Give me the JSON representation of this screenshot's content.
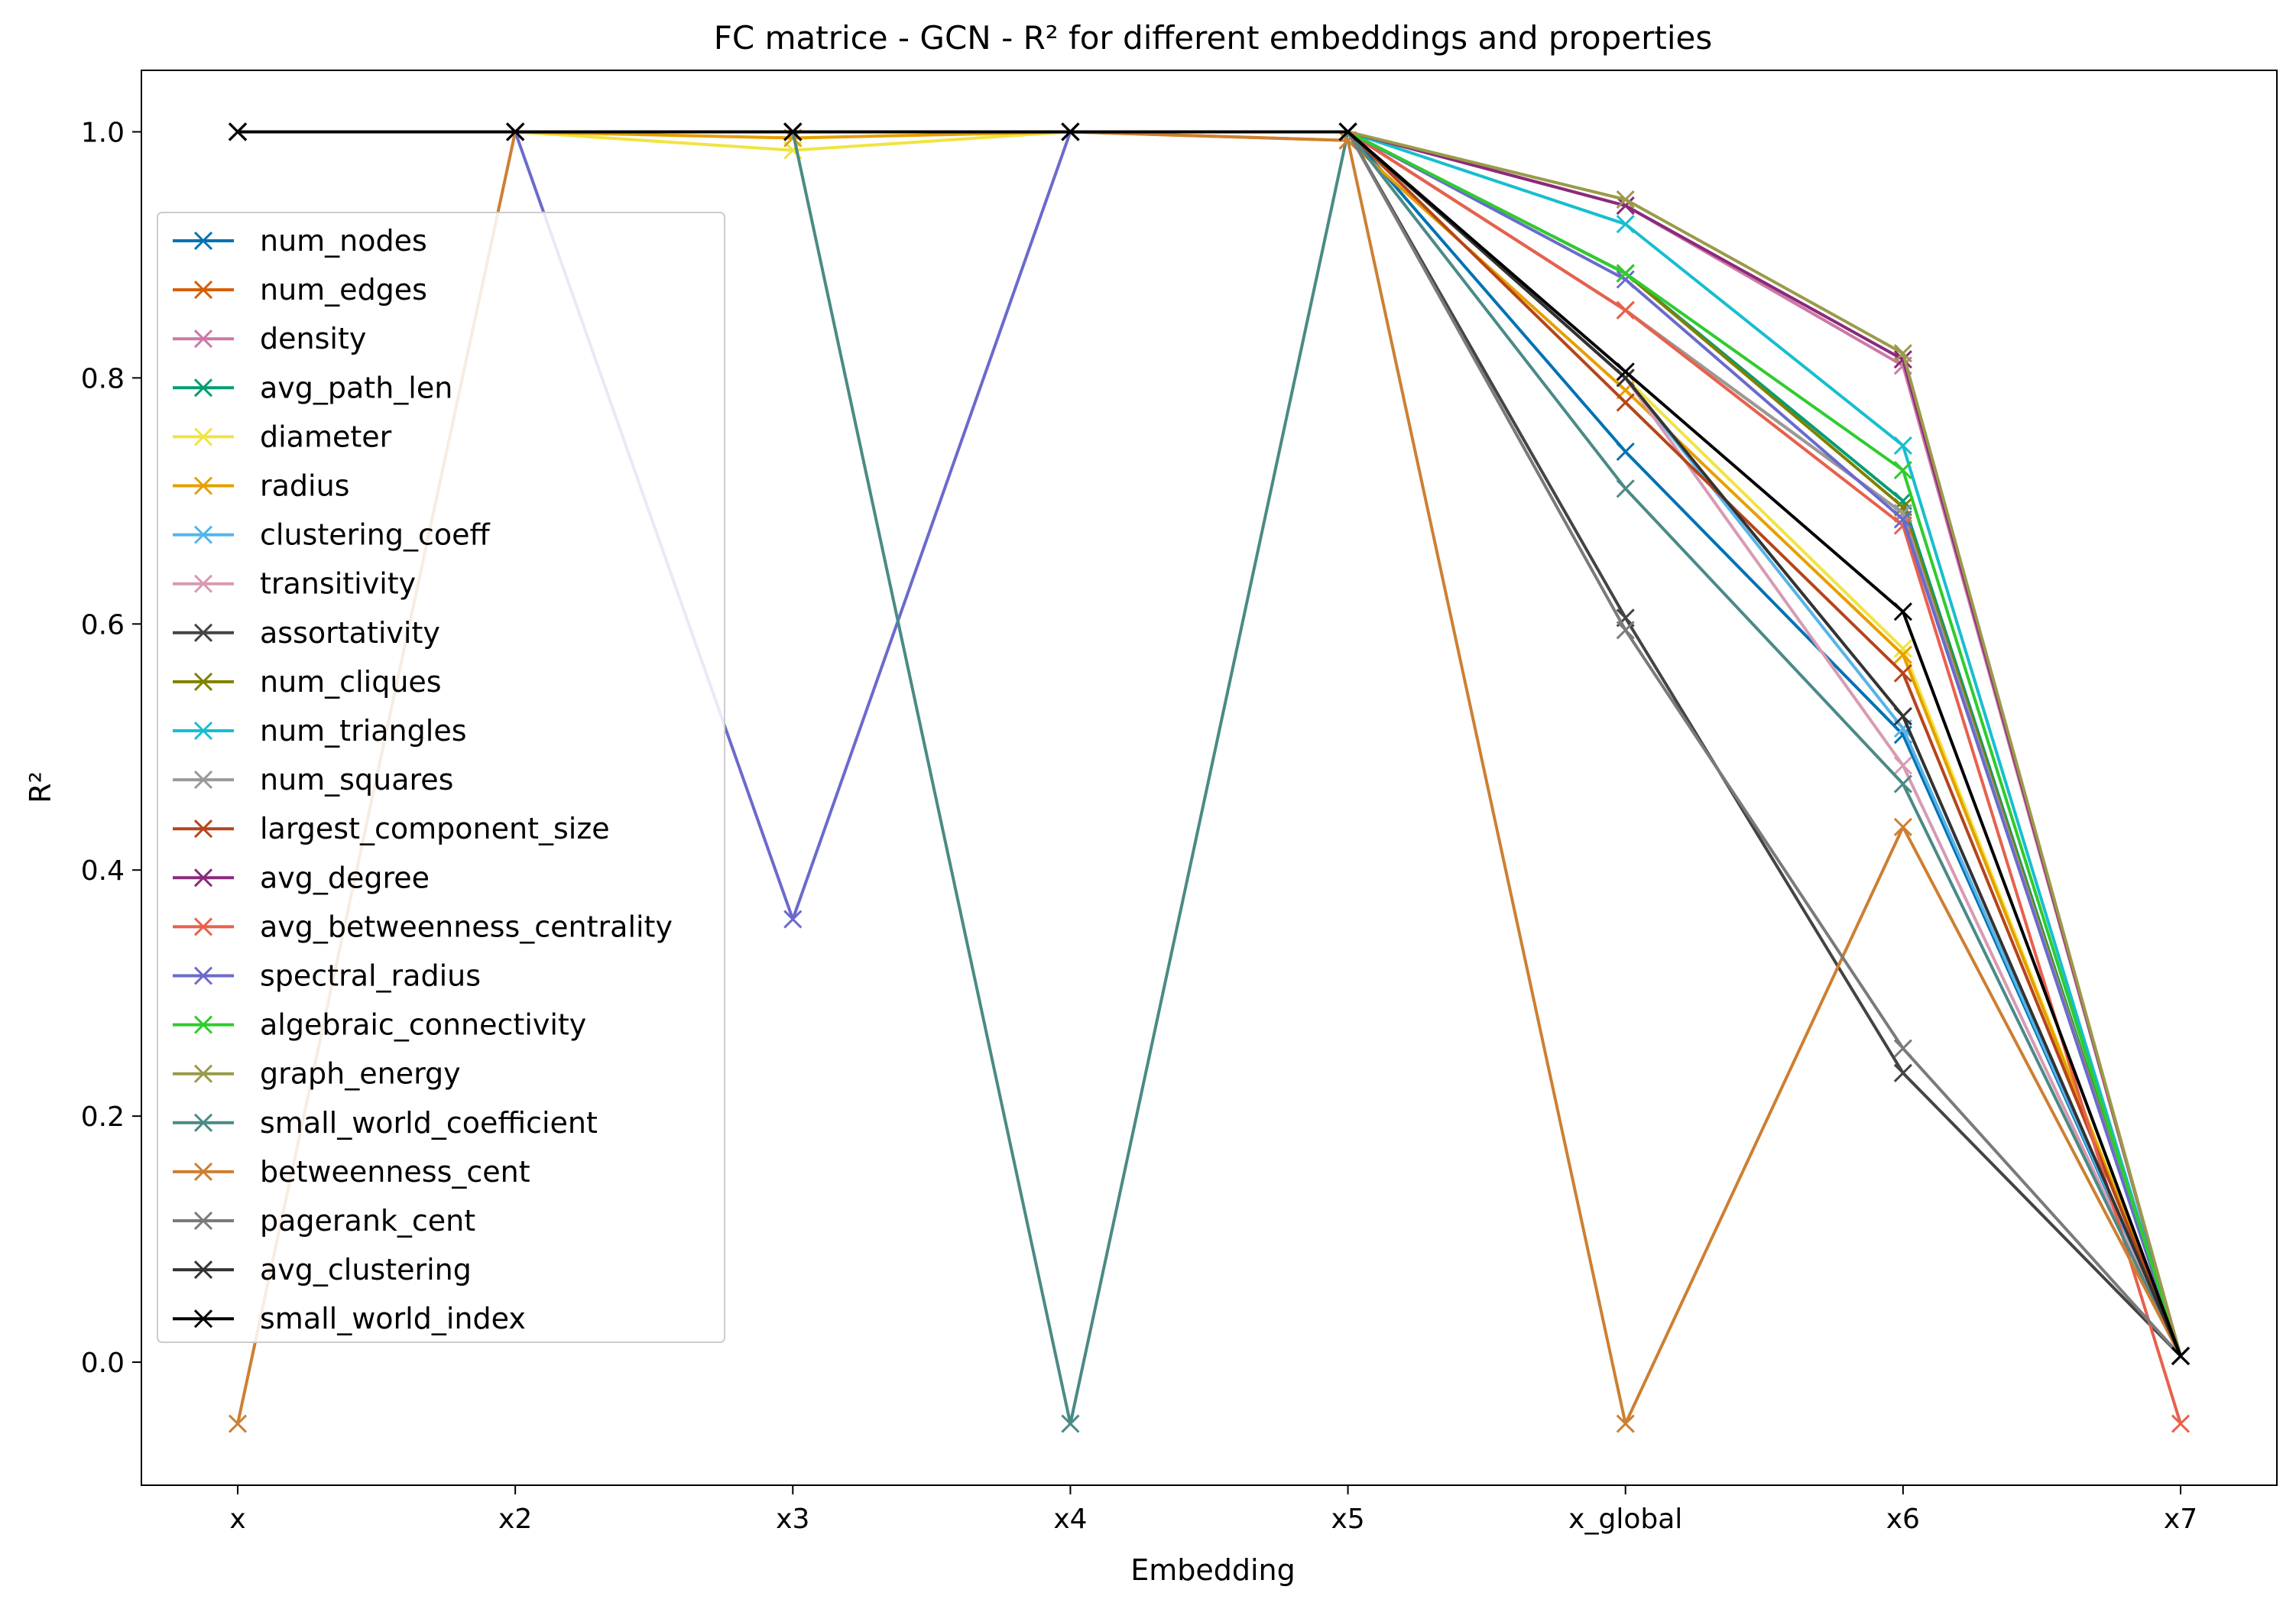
{
  "chart_data": {
    "type": "line",
    "title": "FC matrice - GCN - R² for different embeddings and properties",
    "xlabel": "Embedding",
    "ylabel": "R²",
    "categories": [
      "x",
      "x2",
      "x3",
      "x4",
      "x5",
      "x_global",
      "x6",
      "x7"
    ],
    "ylim": [
      -0.1,
      1.05
    ],
    "yticks": [
      "0.0",
      "0.2",
      "0.4",
      "0.6",
      "0.8",
      "1.0"
    ],
    "marker": "x",
    "grid": false,
    "legend_position": "center-left",
    "series": [
      {
        "name": "num_nodes",
        "color": "#0072b2",
        "values": [
          1.0,
          1.0,
          1.0,
          1.0,
          1.0,
          0.74,
          0.51,
          0.005
        ]
      },
      {
        "name": "num_edges",
        "color": "#d55e00",
        "values": [
          1.0,
          1.0,
          1.0,
          1.0,
          1.0,
          0.855,
          0.69,
          0.005
        ]
      },
      {
        "name": "density",
        "color": "#cc79a7",
        "values": [
          1.0,
          1.0,
          1.0,
          1.0,
          1.0,
          0.94,
          0.81,
          0.005
        ]
      },
      {
        "name": "avg_path_len",
        "color": "#009e73",
        "values": [
          1.0,
          1.0,
          1.0,
          1.0,
          1.0,
          0.885,
          0.7,
          0.005
        ]
      },
      {
        "name": "diameter",
        "color": "#f0e442",
        "values": [
          1.0,
          1.0,
          0.985,
          1.0,
          1.0,
          0.8,
          0.58,
          0.005
        ]
      },
      {
        "name": "radius",
        "color": "#e69f00",
        "values": [
          1.0,
          1.0,
          0.995,
          1.0,
          0.993,
          0.79,
          0.575,
          0.005
        ]
      },
      {
        "name": "clustering_coeff",
        "color": "#56b4e9",
        "values": [
          1.0,
          1.0,
          1.0,
          1.0,
          1.0,
          0.8,
          0.515,
          0.005
        ]
      },
      {
        "name": "transitivity",
        "color": "#d89ab3",
        "values": [
          1.0,
          1.0,
          1.0,
          1.0,
          1.0,
          0.8,
          0.485,
          0.005
        ]
      },
      {
        "name": "assortativity",
        "color": "#444444",
        "values": [
          1.0,
          1.0,
          1.0,
          1.0,
          1.0,
          0.605,
          0.235,
          0.005
        ]
      },
      {
        "name": "num_cliques",
        "color": "#808000",
        "values": [
          1.0,
          1.0,
          1.0,
          1.0,
          1.0,
          0.885,
          0.695,
          0.005
        ]
      },
      {
        "name": "num_triangles",
        "color": "#17becf",
        "values": [
          1.0,
          1.0,
          1.0,
          1.0,
          1.0,
          0.925,
          0.745,
          0.005
        ]
      },
      {
        "name": "num_squares",
        "color": "#999999",
        "values": [
          1.0,
          1.0,
          1.0,
          1.0,
          1.0,
          0.855,
          0.69,
          0.005
        ]
      },
      {
        "name": "largest_component_size",
        "color": "#b5451b",
        "values": [
          1.0,
          1.0,
          1.0,
          1.0,
          1.0,
          0.78,
          0.56,
          0.005
        ]
      },
      {
        "name": "avg_degree",
        "color": "#8b2a7a",
        "values": [
          1.0,
          1.0,
          1.0,
          1.0,
          1.0,
          0.94,
          0.815,
          0.005
        ]
      },
      {
        "name": "avg_betweenness_centrality",
        "color": "#e8604c",
        "values": [
          1.0,
          1.0,
          1.0,
          1.0,
          1.0,
          0.855,
          0.68,
          -0.05
        ]
      },
      {
        "name": "spectral_radius",
        "color": "#6a6acd",
        "values": [
          1.0,
          1.0,
          0.36,
          1.0,
          1.0,
          0.88,
          0.685,
          0.005
        ]
      },
      {
        "name": "algebraic_connectivity",
        "color": "#2ecc2e",
        "values": [
          1.0,
          1.0,
          1.0,
          1.0,
          1.0,
          0.885,
          0.725,
          0.005
        ]
      },
      {
        "name": "graph_energy",
        "color": "#9a9a4a",
        "values": [
          1.0,
          1.0,
          1.0,
          1.0,
          1.0,
          0.945,
          0.82,
          0.005
        ]
      },
      {
        "name": "small_world_coefficient",
        "color": "#4a8a86",
        "values": [
          1.0,
          1.0,
          1.0,
          -0.05,
          1.0,
          0.71,
          0.47,
          0.005
        ]
      },
      {
        "name": "betweenness_cent",
        "color": "#cd7f32",
        "values": [
          -0.05,
          1.0,
          1.0,
          1.0,
          0.993,
          -0.05,
          0.435,
          0.005
        ]
      },
      {
        "name": "pagerank_cent",
        "color": "#7a7a7a",
        "values": [
          1.0,
          1.0,
          1.0,
          1.0,
          1.0,
          0.595,
          0.255,
          0.005
        ]
      },
      {
        "name": "avg_clustering",
        "color": "#333333",
        "values": [
          1.0,
          1.0,
          1.0,
          1.0,
          1.0,
          0.8,
          0.525,
          0.005
        ]
      },
      {
        "name": "small_world_index",
        "color": "#000000",
        "values": [
          1.0,
          1.0,
          1.0,
          1.0,
          1.0,
          0.805,
          0.61,
          0.005
        ]
      }
    ]
  }
}
